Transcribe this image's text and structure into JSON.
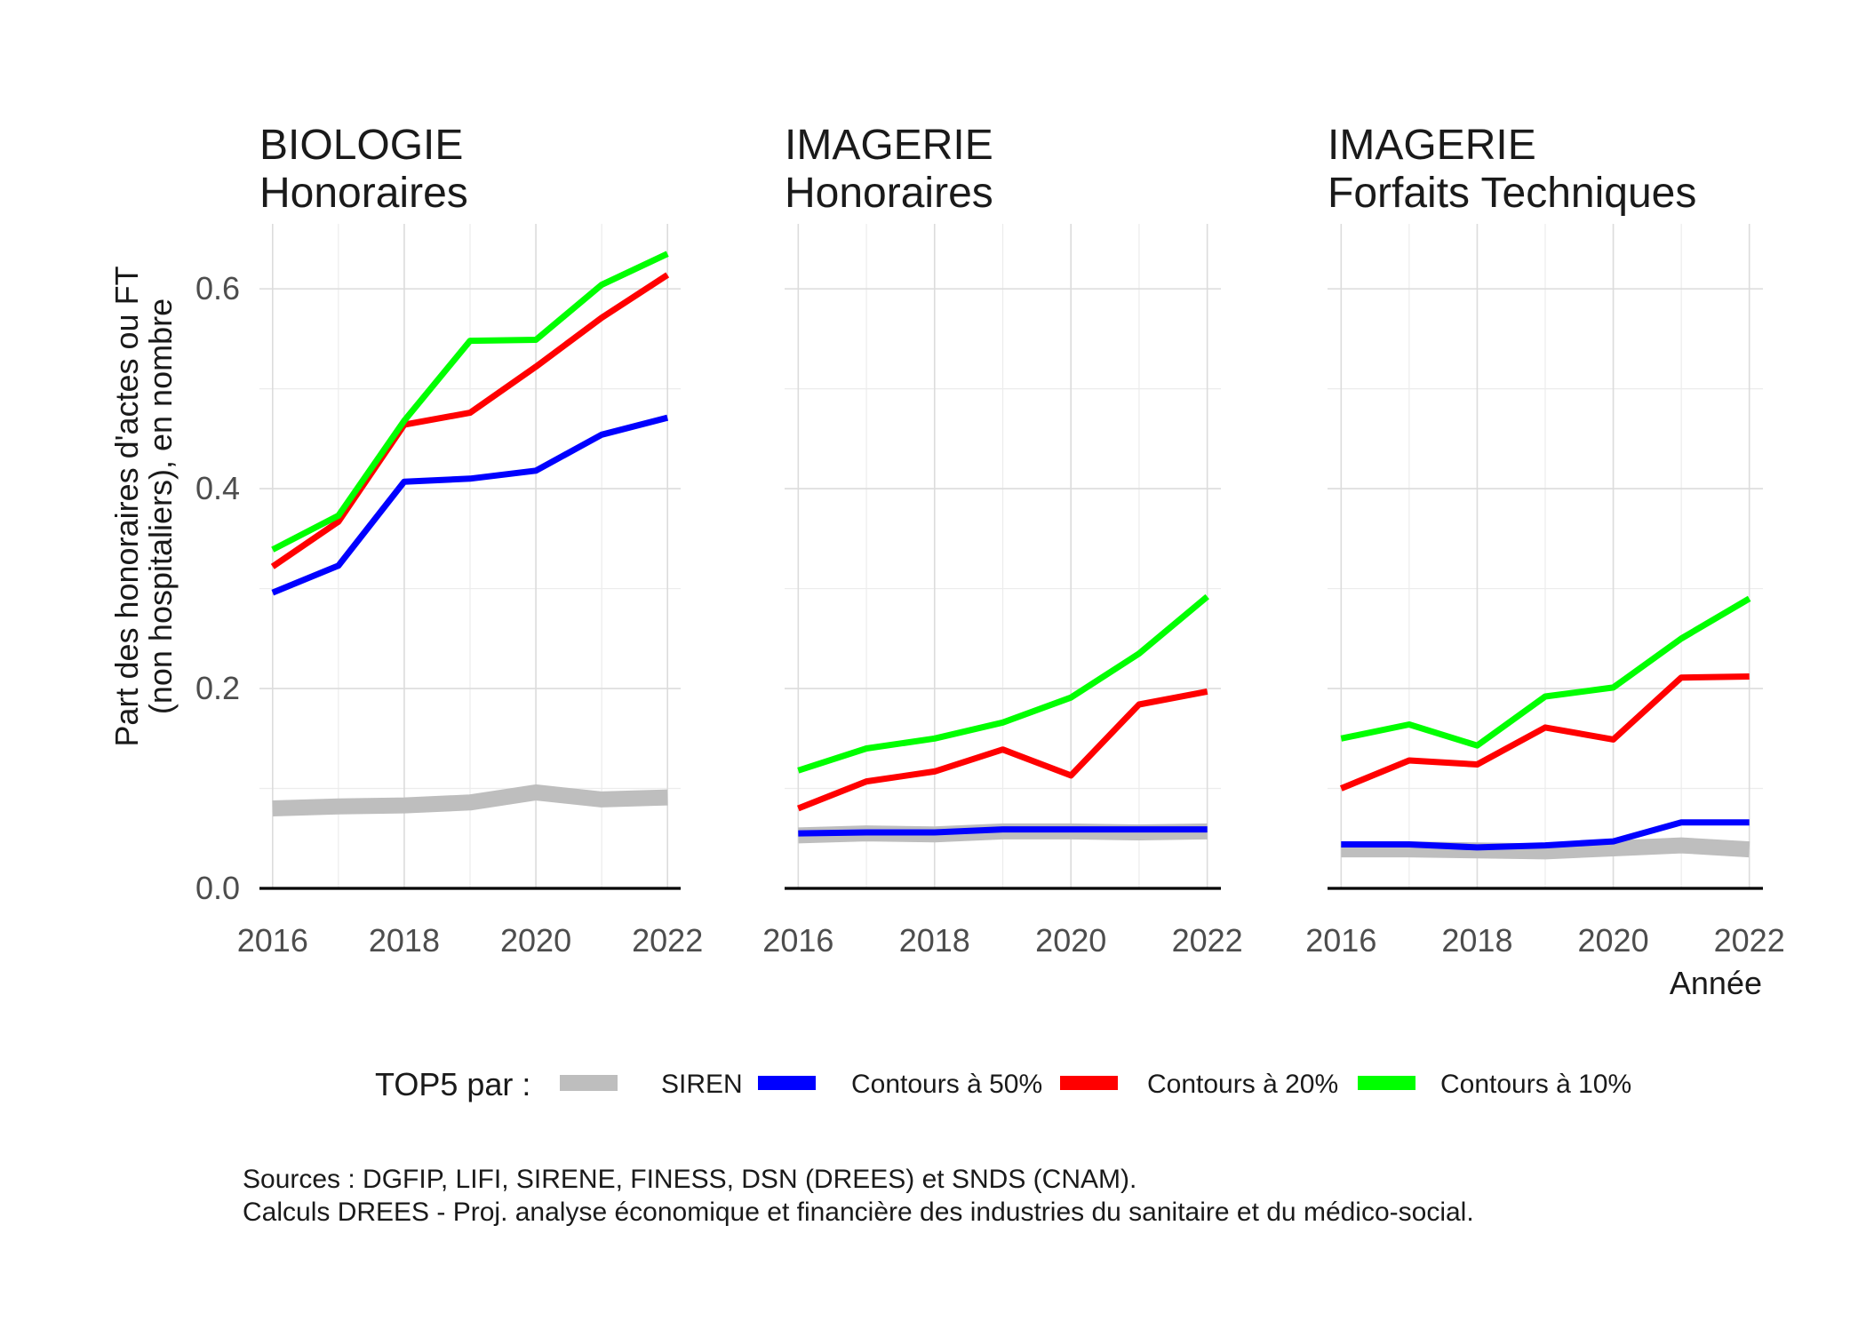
{
  "chart_data": {
    "type": "line",
    "ylabel_lines": [
      "Part des honoraires d'actes ou FT",
      "(non hospitaliers), en nombre"
    ],
    "xlabel": "Année",
    "ylim": [
      0,
      0.665
    ],
    "xlim": [
      2015.8,
      2022.2
    ],
    "yticks": [
      0.0,
      0.2,
      0.4,
      0.6
    ],
    "ytick_labels": [
      "0.0",
      "0.2",
      "0.4",
      "0.6"
    ],
    "xticks": [
      2016,
      2018,
      2020,
      2022
    ],
    "xtick_labels": [
      "2016",
      "2018",
      "2020",
      "2022"
    ],
    "grid": true,
    "legend": {
      "title": "TOP5 par :",
      "position": "bottom",
      "items": [
        {
          "label": "SIREN",
          "color": "#bebebe"
        },
        {
          "label": "Contours à 50%",
          "color": "#0000ff"
        },
        {
          "label": "Contours à 20%",
          "color": "#ff0000"
        },
        {
          "label": "Contours à 10%",
          "color": "#00ff00"
        }
      ]
    },
    "x": [
      2016,
      2017,
      2018,
      2019,
      2020,
      2021,
      2022
    ],
    "panels": [
      {
        "title_lines": [
          "BIOLOGIE",
          "Honoraires"
        ],
        "series": [
          {
            "name": "SIREN",
            "color": "#bebebe",
            "values": [
              0.08,
              0.082,
              0.083,
              0.086,
              0.096,
              0.089,
              0.091
            ]
          },
          {
            "name": "Contours à 50%",
            "color": "#0000ff",
            "values": [
              0.296,
              0.323,
              0.407,
              0.41,
              0.418,
              0.454,
              0.471
            ]
          },
          {
            "name": "Contours à 20%",
            "color": "#ff0000",
            "values": [
              0.322,
              0.367,
              0.464,
              0.476,
              0.522,
              0.571,
              0.614
            ]
          },
          {
            "name": "Contours à 10%",
            "color": "#00ff00",
            "values": [
              0.339,
              0.373,
              0.468,
              0.548,
              0.549,
              0.604,
              0.635
            ]
          }
        ]
      },
      {
        "title_lines": [
          "IMAGERIE",
          "Honoraires"
        ],
        "series": [
          {
            "name": "SIREN",
            "color": "#bebebe",
            "values": [
              0.053,
              0.055,
              0.054,
              0.057,
              0.057,
              0.056,
              0.057
            ]
          },
          {
            "name": "Contours à 50%",
            "color": "#0000ff",
            "values": [
              0.055,
              0.056,
              0.056,
              0.059,
              0.059,
              0.059,
              0.059
            ]
          },
          {
            "name": "Contours à 20%",
            "color": "#ff0000",
            "values": [
              0.08,
              0.107,
              0.117,
              0.139,
              0.113,
              0.184,
              0.197
            ]
          },
          {
            "name": "Contours à 10%",
            "color": "#00ff00",
            "values": [
              0.118,
              0.14,
              0.15,
              0.166,
              0.191,
              0.235,
              0.292
            ]
          }
        ]
      },
      {
        "title_lines": [
          "IMAGERIE",
          "Forfaits Techniques"
        ],
        "series": [
          {
            "name": "SIREN",
            "color": "#bebebe",
            "values": [
              0.039,
              0.039,
              0.038,
              0.037,
              0.04,
              0.043,
              0.039
            ]
          },
          {
            "name": "Contours à 50%",
            "color": "#0000ff",
            "values": [
              0.044,
              0.044,
              0.041,
              0.043,
              0.047,
              0.066,
              0.066
            ]
          },
          {
            "name": "Contours à 20%",
            "color": "#ff0000",
            "values": [
              0.1,
              0.128,
              0.124,
              0.161,
              0.149,
              0.211,
              0.212
            ]
          },
          {
            "name": "Contours à 10%",
            "color": "#00ff00",
            "values": [
              0.15,
              0.164,
              0.143,
              0.192,
              0.201,
              0.25,
              0.29
            ]
          }
        ]
      }
    ],
    "caption_lines": [
      "Sources : DGFIP, LIFI, SIRENE, FINESS, DSN (DREES) et SNDS (CNAM).",
      "Calculs DREES - Proj. analyse économique et financière des industries du sanitaire et du médico-social."
    ]
  }
}
